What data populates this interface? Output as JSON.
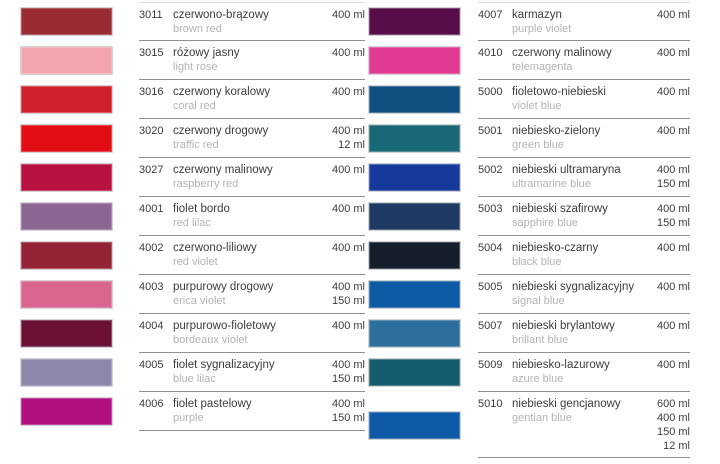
{
  "theme": {
    "background": "#ffffff",
    "divider_color": "#8f8f8f",
    "text_color": "#3c3c3c",
    "muted_text_color": "#b3b3b3"
  },
  "left_table": {
    "rows": [
      {
        "code": "3011",
        "name_pl": "czerwono-brązowy",
        "name_en": "brown red",
        "volumes": [
          "400 ml"
        ],
        "color": "#9a2a33"
      },
      {
        "code": "3015",
        "name_pl": "różowy jasny",
        "name_en": "light rose",
        "volumes": [
          "400 ml"
        ],
        "color": "#f2a4af"
      },
      {
        "code": "3016",
        "name_pl": "czerwony koralowy",
        "name_en": "coral red",
        "volumes": [
          "400 ml"
        ],
        "color": "#d0202c"
      },
      {
        "code": "3020",
        "name_pl": "czerwony drogowy",
        "name_en": "traffic red",
        "volumes": [
          "400 ml",
          "12 ml"
        ],
        "color": "#e30d16"
      },
      {
        "code": "3027",
        "name_pl": "czerwony malinowy",
        "name_en": "raspberry red",
        "volumes": [
          "400 ml"
        ],
        "color": "#b7113f"
      },
      {
        "code": "4001",
        "name_pl": "fiolet bordo",
        "name_en": "red lilac",
        "volumes": [
          "400 ml"
        ],
        "color": "#8c6794"
      },
      {
        "code": "4002",
        "name_pl": "czerwono-liliowy",
        "name_en": "red violet",
        "volumes": [
          "400 ml"
        ],
        "color": "#952337"
      },
      {
        "code": "4003",
        "name_pl": "purpurowy drogowy",
        "name_en": "erica violet",
        "volumes": [
          "400 ml",
          "150 ml"
        ],
        "color": "#d9648f"
      },
      {
        "code": "4004",
        "name_pl": "purpurowo-fioletowy",
        "name_en": "bordeaux violet",
        "volumes": [
          "400 ml"
        ],
        "color": "#6b1136"
      },
      {
        "code": "4005",
        "name_pl": "fiolet sygnalizacyjny",
        "name_en": "blue lilac",
        "volumes": [
          "400 ml",
          "150 ml"
        ],
        "color": "#8d87ac"
      },
      {
        "code": "4006",
        "name_pl": "fiolet pastelowy",
        "name_en": "purple",
        "volumes": [
          "400 ml",
          "150 ml"
        ],
        "color": "#b10f7d"
      }
    ]
  },
  "right_table": {
    "rows": [
      {
        "code": "4007",
        "name_pl": "karmazyn",
        "name_en": "purple violet",
        "volumes": [
          "400 ml"
        ],
        "color": "#570d49"
      },
      {
        "code": "4010",
        "name_pl": "czerwony malinowy",
        "name_en": "telemagenta",
        "volumes": [
          "400 ml"
        ],
        "color": "#e03a92"
      },
      {
        "code": "5000",
        "name_pl": "fioletowo-niebieski",
        "name_en": "violet blue",
        "volumes": [
          "400 ml"
        ],
        "color": "#0e4f80"
      },
      {
        "code": "5001",
        "name_pl": "niebiesko-zielony",
        "name_en": "green blue",
        "volumes": [
          "400 ml"
        ],
        "color": "#186876"
      },
      {
        "code": "5002",
        "name_pl": "niebieski ultramaryna",
        "name_en": "ultramarine blue",
        "volumes": [
          "400 ml",
          "150 ml"
        ],
        "color": "#17399b"
      },
      {
        "code": "5003",
        "name_pl": "niebieski szafirowy",
        "name_en": "sapphire blue",
        "volumes": [
          "400 ml",
          "150 ml"
        ],
        "color": "#1e3a63"
      },
      {
        "code": "5004",
        "name_pl": "niebiesko-czarny",
        "name_en": "black blue",
        "volumes": [
          "400 ml"
        ],
        "color": "#141f2b"
      },
      {
        "code": "5005",
        "name_pl": "niebieski sygnalizacyjny",
        "name_en": "signal blue",
        "volumes": [
          "400 ml"
        ],
        "color": "#0d5aa5"
      },
      {
        "code": "5007",
        "name_pl": "niebieski brylantowy",
        "name_en": "brillant blue",
        "volumes": [
          "400 ml"
        ],
        "color": "#2e6e9d"
      },
      {
        "code": "5009",
        "name_pl": "niebiesko-lazurowy",
        "name_en": "azure blue",
        "volumes": [
          "400 ml"
        ],
        "color": "#135c6c"
      },
      {
        "code": "5010",
        "name_pl": "niebieski gencjanowy",
        "name_en": "gentian blue",
        "volumes": [
          "600 ml",
          "400 ml",
          "150 ml",
          "12 ml"
        ],
        "color": "#0d59a6"
      }
    ]
  }
}
